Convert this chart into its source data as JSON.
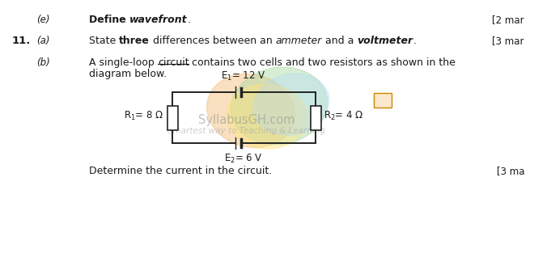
{
  "bg_color": "#ffffff",
  "text_color": "#1a1a1a",
  "marks_e": "[2 mar",
  "marks_a": "[3 mar",
  "marks_b": "[3 ma",
  "watermark_brand": "SyllabusGH.com",
  "watermark_text": "Smartest way to Teaching & Learning",
  "determine_text": "Determine the current in the circuit.",
  "circuit": {
    "wire_color": "#222222",
    "E1_text": "E",
    "E1_sub": "1",
    "E1_val": "= 12 V",
    "E2_text": "E",
    "E2_sub": "2",
    "E2_val": "= 6 V",
    "R1_text": "R",
    "R1_sub": "1",
    "R1_val": "= 8 Ω",
    "R2_text": "R",
    "R2_sub": "2",
    "R2_val": "= 4 Ω"
  }
}
